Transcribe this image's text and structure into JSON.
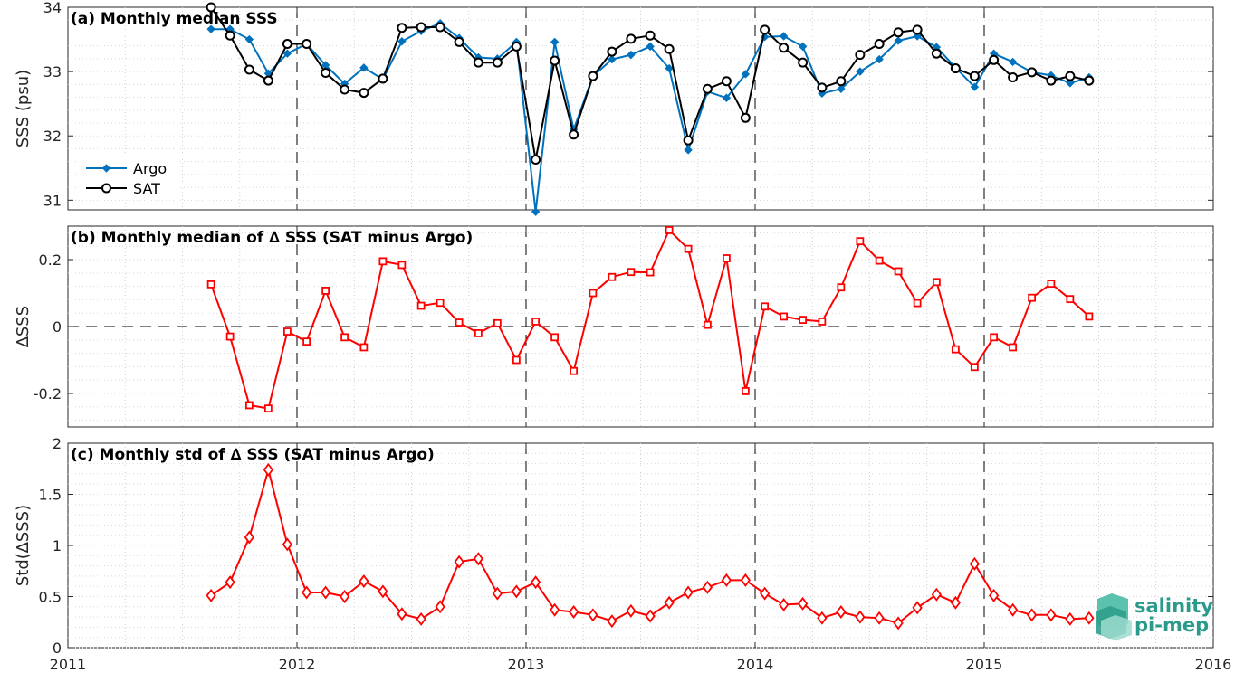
{
  "x_axis": {
    "tick_labels": [
      "2011",
      "2012",
      "2013",
      "2014",
      "2015",
      "2016"
    ],
    "tick_values": [
      2011,
      2012,
      2013,
      2014,
      2015,
      2016
    ],
    "range": [
      2011,
      2016
    ]
  },
  "logo": {
    "line1": "salinity",
    "line2": "pi-mep"
  },
  "colors": {
    "argo": "#0072BD",
    "sat": "#000000",
    "delta": "#ff0000",
    "axis": "#262626"
  },
  "chart_data": [
    {
      "type": "line",
      "title": "(a) Monthly median SSS",
      "ylabel": "SSS (psu)",
      "ylim": [
        30.85,
        34.0
      ],
      "yticks": [
        31,
        32,
        33,
        34
      ],
      "ytick_labels": [
        "31",
        "32",
        "33",
        "34"
      ],
      "grid": true,
      "legend_position": "lower-left",
      "x": [
        2011.625,
        2011.708,
        2011.792,
        2011.875,
        2011.958,
        2012.042,
        2012.125,
        2012.208,
        2012.292,
        2012.375,
        2012.458,
        2012.542,
        2012.625,
        2012.708,
        2012.792,
        2012.875,
        2012.958,
        2013.042,
        2013.125,
        2013.208,
        2013.292,
        2013.375,
        2013.458,
        2013.542,
        2013.625,
        2013.708,
        2013.792,
        2013.875,
        2013.958,
        2014.042,
        2014.125,
        2014.208,
        2014.292,
        2014.375,
        2014.458,
        2014.542,
        2014.625,
        2014.708,
        2014.792,
        2014.875,
        2014.958,
        2015.042,
        2015.125,
        2015.208,
        2015.292,
        2015.375,
        2015.458
      ],
      "series": [
        {
          "name": "Argo",
          "marker": "diamond",
          "values": [
            33.66,
            33.66,
            33.5,
            32.97,
            33.28,
            33.43,
            33.1,
            32.81,
            33.06,
            32.88,
            33.47,
            33.63,
            33.75,
            33.52,
            33.22,
            33.2,
            33.46,
            30.82,
            33.46,
            32.1,
            32.93,
            33.19,
            33.26,
            33.39,
            33.05,
            31.78,
            32.69,
            32.59,
            32.96,
            33.54,
            33.55,
            33.39,
            32.66,
            32.73,
            33.0,
            33.19,
            33.48,
            33.55,
            33.38,
            33.06,
            32.76,
            33.28,
            33.15,
            32.99,
            32.94,
            32.82,
            32.91
          ]
        },
        {
          "name": "SAT",
          "marker": "circle",
          "values": [
            34.0,
            33.56,
            33.03,
            32.86,
            33.43,
            33.43,
            32.98,
            32.72,
            32.67,
            32.89,
            33.68,
            33.69,
            33.69,
            33.46,
            33.14,
            33.14,
            33.39,
            31.63,
            33.17,
            32.02,
            32.93,
            33.31,
            33.51,
            33.56,
            33.35,
            31.93,
            32.73,
            32.85,
            32.28,
            33.65,
            33.37,
            33.14,
            32.75,
            32.85,
            33.26,
            33.43,
            33.61,
            33.65,
            33.28,
            33.05,
            32.93,
            33.18,
            32.91,
            32.99,
            32.86,
            32.93,
            32.86
          ]
        }
      ]
    },
    {
      "type": "line",
      "title": "(b) Monthly median of ∆ SSS (SAT minus Argo)",
      "ylabel": "∆SSS",
      "ylim": [
        -0.3,
        0.3
      ],
      "yticks": [
        -0.2,
        0,
        0.2
      ],
      "ytick_labels": [
        "-0.2",
        "0",
        "0.2"
      ],
      "grid": true,
      "x": [
        2011.625,
        2011.708,
        2011.792,
        2011.875,
        2011.958,
        2012.042,
        2012.125,
        2012.208,
        2012.292,
        2012.375,
        2012.458,
        2012.542,
        2012.625,
        2012.708,
        2012.792,
        2012.875,
        2012.958,
        2013.042,
        2013.125,
        2013.208,
        2013.292,
        2013.375,
        2013.458,
        2013.542,
        2013.625,
        2013.708,
        2013.792,
        2013.875,
        2013.958,
        2014.042,
        2014.125,
        2014.208,
        2014.292,
        2014.375,
        2014.458,
        2014.542,
        2014.625,
        2014.708,
        2014.792,
        2014.875,
        2014.958,
        2015.042,
        2015.125,
        2015.208,
        2015.292,
        2015.375,
        2015.458
      ],
      "series": [
        {
          "marker": "square",
          "values": [
            0.126,
            -0.03,
            -0.235,
            -0.245,
            -0.015,
            -0.045,
            0.107,
            -0.032,
            -0.062,
            0.195,
            0.184,
            0.062,
            0.071,
            0.012,
            -0.02,
            0.01,
            -0.1,
            0.015,
            -0.032,
            -0.133,
            0.1,
            0.148,
            0.163,
            0.162,
            0.288,
            0.232,
            0.005,
            0.204,
            -0.193,
            0.06,
            0.03,
            0.02,
            0.015,
            0.117,
            0.255,
            0.197,
            0.165,
            0.07,
            0.133,
            -0.068,
            -0.121,
            -0.032,
            -0.062,
            0.086,
            0.128,
            0.082,
            0.03
          ]
        }
      ]
    },
    {
      "type": "line",
      "title": "(c) Monthly std of ∆ SSS (SAT minus Argo)",
      "ylabel": "Std(∆SSS)",
      "ylim": [
        0,
        2
      ],
      "yticks": [
        0,
        0.5,
        1,
        1.5,
        2
      ],
      "ytick_labels": [
        "0",
        "0.5",
        "1",
        "1.5",
        "2"
      ],
      "grid": true,
      "x": [
        2011.625,
        2011.708,
        2011.792,
        2011.875,
        2011.958,
        2012.042,
        2012.125,
        2012.208,
        2012.292,
        2012.375,
        2012.458,
        2012.542,
        2012.625,
        2012.708,
        2012.792,
        2012.875,
        2012.958,
        2013.042,
        2013.125,
        2013.208,
        2013.292,
        2013.375,
        2013.458,
        2013.542,
        2013.625,
        2013.708,
        2013.792,
        2013.875,
        2013.958,
        2014.042,
        2014.125,
        2014.208,
        2014.292,
        2014.375,
        2014.458,
        2014.542,
        2014.625,
        2014.708,
        2014.792,
        2014.875,
        2014.958,
        2015.042,
        2015.125,
        2015.208,
        2015.292,
        2015.375,
        2015.458
      ],
      "series": [
        {
          "marker": "diamond",
          "values": [
            0.51,
            0.64,
            1.08,
            1.74,
            1.01,
            0.54,
            0.54,
            0.5,
            0.65,
            0.55,
            0.33,
            0.28,
            0.4,
            0.84,
            0.87,
            0.53,
            0.55,
            0.64,
            0.37,
            0.35,
            0.32,
            0.26,
            0.36,
            0.31,
            0.44,
            0.54,
            0.59,
            0.66,
            0.66,
            0.53,
            0.42,
            0.43,
            0.29,
            0.35,
            0.3,
            0.29,
            0.24,
            0.39,
            0.52,
            0.44,
            0.82,
            0.51,
            0.37,
            0.32,
            0.32,
            0.28,
            0.29
          ]
        }
      ]
    }
  ]
}
